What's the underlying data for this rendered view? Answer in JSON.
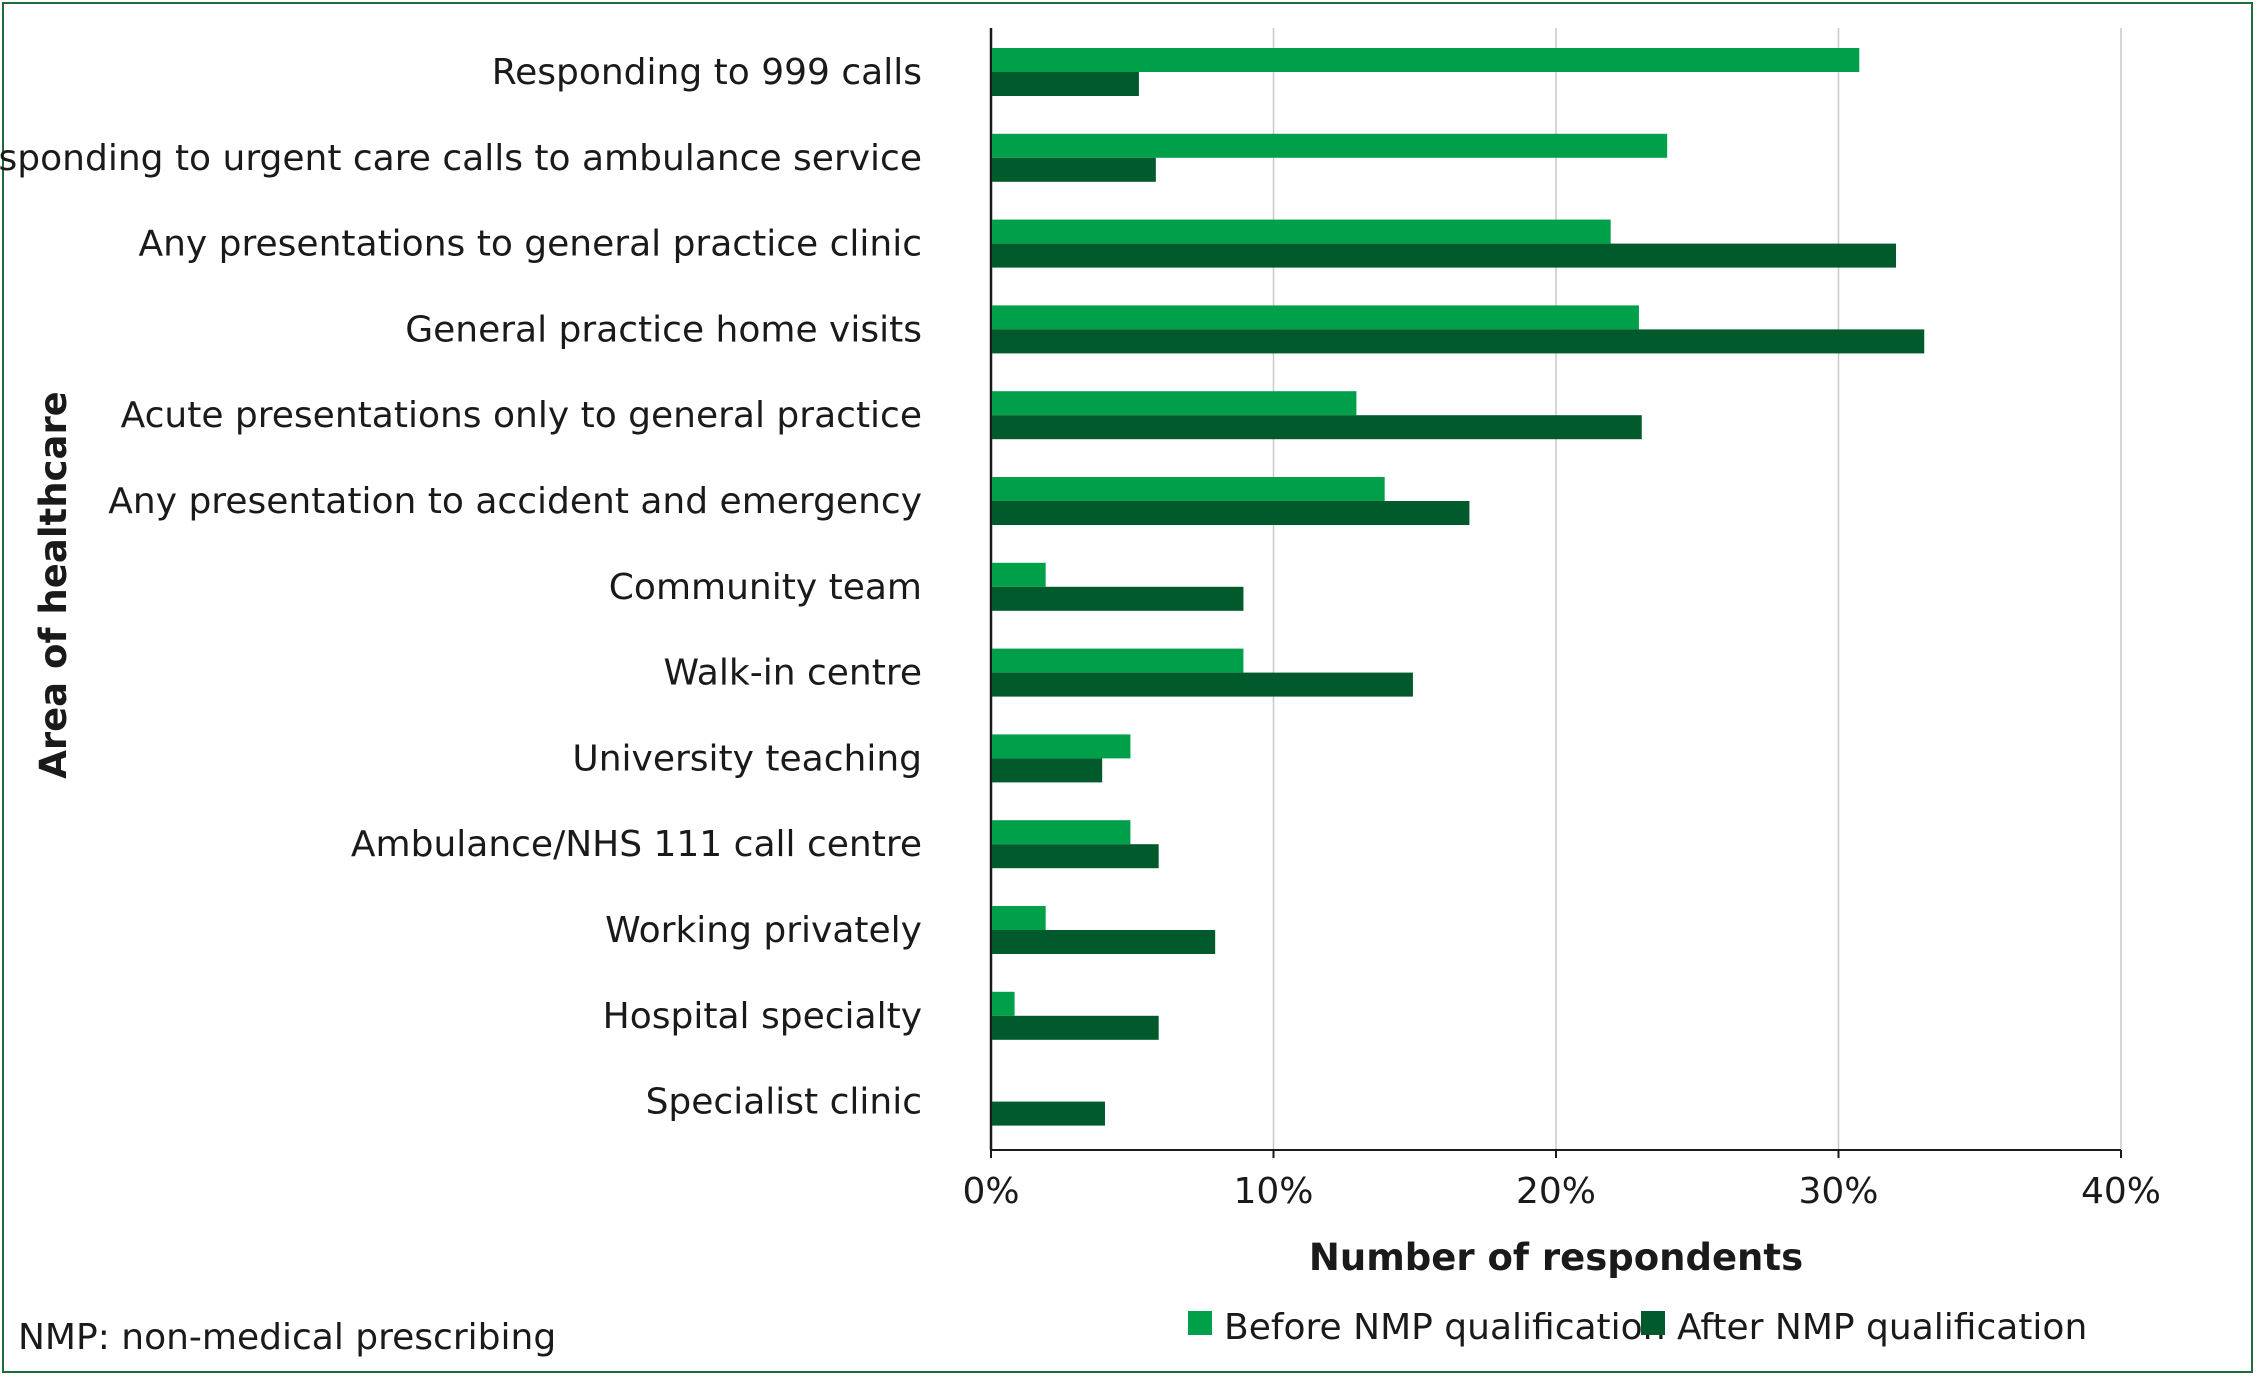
{
  "chart_data": {
    "type": "bar",
    "orientation": "horizontal",
    "categories": [
      "Responding to 999 calls",
      "Responding to urgent care calls to ambulance service",
      "Any presentations to general practice clinic",
      "General practice home visits",
      "Acute presentations only to general practice",
      "Any presentation to accident and emergency",
      "Community team",
      "Walk-in centre",
      "University teaching",
      "Ambulance/NHS 111 call centre",
      "Working privately",
      "Hospital specialty",
      "Specialist clinic"
    ],
    "series": [
      {
        "name": "Before NMP qualification",
        "color": "#00a04b",
        "values": [
          30.7,
          23.9,
          21.9,
          22.9,
          12.9,
          13.9,
          1.9,
          8.9,
          4.9,
          4.9,
          1.9,
          0.8,
          0
        ]
      },
      {
        "name": "After NMP qualification",
        "color": "#005a2b",
        "values": [
          5.2,
          5.8,
          32.0,
          33.0,
          23.0,
          16.9,
          8.9,
          14.9,
          3.9,
          5.9,
          7.9,
          5.9,
          4.0
        ]
      }
    ],
    "xlabel": "Number of respondents",
    "ylabel": "Area of healthcare",
    "xlim": [
      0,
      40
    ],
    "xticks": [
      "0%",
      "10%",
      "20%",
      "30%",
      "40%"
    ],
    "grid": "vertical",
    "legend": "bottom-right"
  },
  "footnote": "NMP: non-medical prescribing",
  "colors": {
    "frame": "#1f6b3a",
    "grid": "#c8c8c8",
    "axis": "#1a1a1a"
  }
}
